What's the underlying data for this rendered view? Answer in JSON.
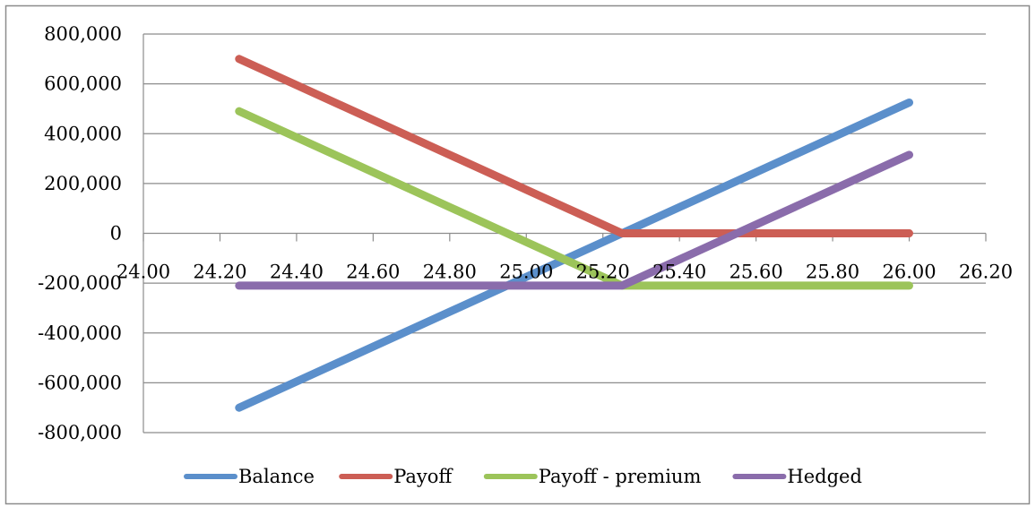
{
  "chart_data": {
    "type": "line",
    "title": "",
    "xlabel": "",
    "ylabel": "",
    "xlim": [
      24.0,
      26.2
    ],
    "ylim": [
      -800000,
      800000
    ],
    "x_ticks": [
      "24.00",
      "24.20",
      "24.40",
      "24.60",
      "24.80",
      "25.00",
      "25.20",
      "25.40",
      "25.60",
      "25.80",
      "26.00",
      "26.20"
    ],
    "y_ticks": [
      "800,000",
      "600,000",
      "400,000",
      "200,000",
      "0",
      "-200,000",
      "-400,000",
      "-600,000",
      "-800,000"
    ],
    "grid": "horizontal",
    "legend_position": "bottom",
    "series": [
      {
        "name": "Balance",
        "color": "#5b8fcb",
        "x": [
          24.25,
          26.0
        ],
        "y": [
          -700000,
          525000
        ]
      },
      {
        "name": "Payoff",
        "color": "#cc5e55",
        "x": [
          24.25,
          25.25,
          26.0
        ],
        "y": [
          700000,
          0,
          0
        ]
      },
      {
        "name": "Payoff - premium",
        "color": "#9cc45a",
        "x": [
          24.25,
          25.25,
          26.0
        ],
        "y": [
          490000,
          -210000,
          -210000
        ]
      },
      {
        "name": "Hedged",
        "color": "#8a6cab",
        "x": [
          24.25,
          25.25,
          26.0
        ],
        "y": [
          -210000,
          -210000,
          315000
        ]
      }
    ]
  }
}
